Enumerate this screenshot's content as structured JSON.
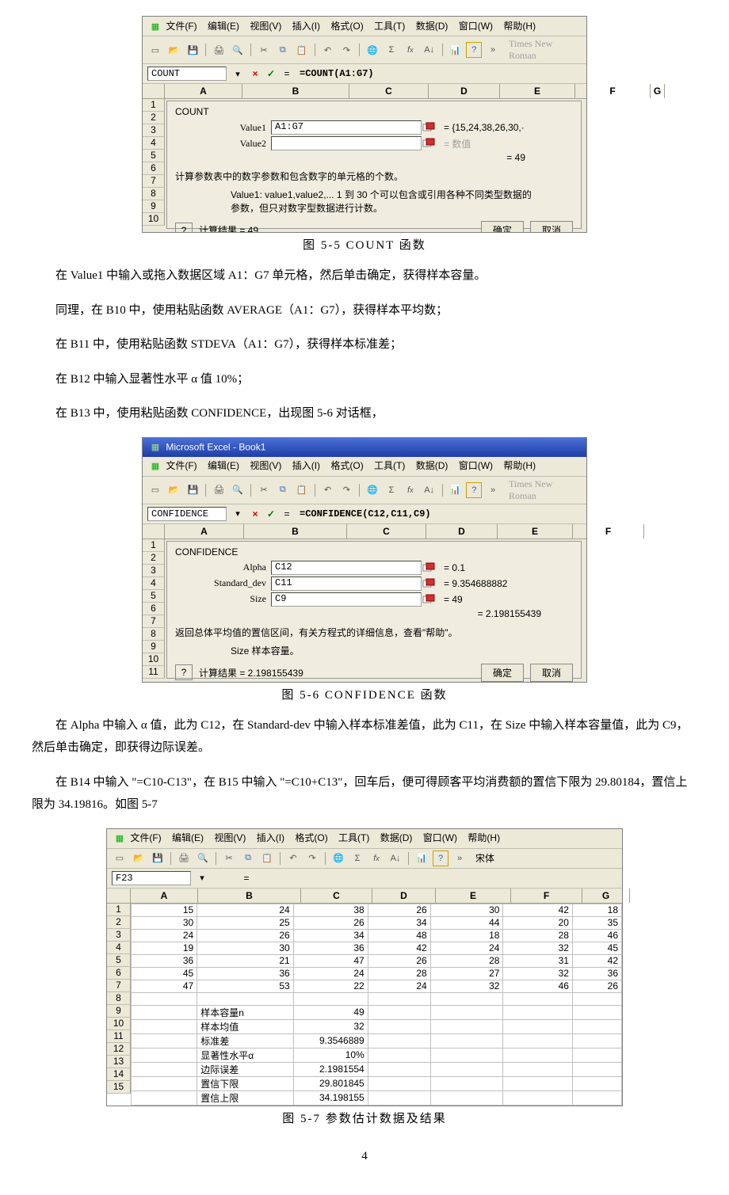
{
  "menus": {
    "file": "文件(F)",
    "edit": "编辑(E)",
    "view": "视图(V)",
    "insert": "插入(I)",
    "format": "格式(O)",
    "tools": "工具(T)",
    "data": "数据(D)",
    "window": "窗口(W)",
    "help": "帮助(H)"
  },
  "toolbar": {
    "fontname": "Times New Roman",
    "fontname3": "宋体"
  },
  "cols": {
    "a": "A",
    "b": "B",
    "c": "C",
    "d": "D",
    "e": "E",
    "f": "F",
    "g": "G"
  },
  "buttons": {
    "ok": "确定",
    "cancel": "取消"
  },
  "fig1": {
    "namebox": "COUNT",
    "formula": "=COUNT(A1:G7)",
    "title": "COUNT",
    "value1_label": "Value1",
    "value1_input": "A1:G7",
    "value1_eq": "= {15,24,38,26,30,·",
    "value2_label": "Value2",
    "value2_eq": "= 数值",
    "result_eq": "= 49",
    "desc": "计算参数表中的数字参数和包含数字的单元格的个数。",
    "sub1": "Value1: value1,value2,... 1 到 30 个可以包含或引用各种不同类型数据的",
    "sub2": "参数，但只对数字型数据进行计数。",
    "result_label": "计算结果 =   49",
    "caption": "图 5-5   COUNT 函数"
  },
  "para1": "在 Value1 中输入或拖入数据区域 A1：G7 单元格，然后单击确定，获得样本容量。",
  "para2": "同理，在 B10 中，使用粘贴函数 AVERAGE（A1：G7），获得样本平均数；",
  "para3": "在 B11 中，使用粘贴函数 STDEVA（A1：G7），获得样本标准差；",
  "para4": "在 B12 中输入显著性水平 α 值 10%；",
  "para5": "在 B13 中，使用粘贴函数 CONFIDENCE，出现图 5-6 对话框，",
  "fig2": {
    "titlebar": "Microsoft Excel - Book1",
    "namebox": "CONFIDENCE",
    "formula": "=CONFIDENCE(C12,C11,C9)",
    "title": "CONFIDENCE",
    "alpha_label": "Alpha",
    "alpha_input": "C12",
    "alpha_eq": "= 0.1",
    "std_label": "Standard_dev",
    "std_input": "C11",
    "std_eq": "= 9.354688882",
    "size_label": "Size",
    "size_input": "C9",
    "size_eq": "= 49",
    "result_eq": "= 2.198155439",
    "desc": "返回总体平均值的置信区间，有关方程式的详细信息，查看\"帮助\"。",
    "sub": "Size 样本容量。",
    "result_label": "计算结果 =   2.198155439",
    "caption": "图 5-6   CONFIDENCE 函数"
  },
  "para6": "在 Alpha 中输入 α 值，此为 C12，在 Standard-dev 中输入样本标准差值，此为 C11，在 Size 中输入样本容量值，此为 C9，然后单击确定，即获得边际误差。",
  "para7": "在 B14 中输入 \"=C10-C13\"，在 B15 中输入 \"=C10+C13\"，回车后，便可得顾客平均消费额的置信下限为 29.80184，置信上限为 34.19816。如图 5-7",
  "fig3": {
    "namebox": "F23",
    "rows": [
      [
        "15",
        "24",
        "38",
        "26",
        "30",
        "42",
        "18"
      ],
      [
        "30",
        "25",
        "26",
        "34",
        "44",
        "20",
        "35"
      ],
      [
        "24",
        "26",
        "34",
        "48",
        "18",
        "28",
        "46"
      ],
      [
        "19",
        "30",
        "36",
        "42",
        "24",
        "32",
        "45"
      ],
      [
        "36",
        "21",
        "47",
        "26",
        "28",
        "31",
        "42"
      ],
      [
        "45",
        "36",
        "24",
        "28",
        "27",
        "32",
        "36"
      ],
      [
        "47",
        "53",
        "22",
        "24",
        "32",
        "46",
        "26"
      ]
    ],
    "labels": {
      "r9": {
        "b": "样本容量n",
        "c": "49"
      },
      "r10": {
        "b": "样本均值",
        "c": "32"
      },
      "r11": {
        "b": "标准差",
        "c": "9.3546889"
      },
      "r12": {
        "b": "显著性水平α",
        "c": "10%"
      },
      "r13": {
        "b": "边际误差",
        "c": "2.1981554"
      },
      "r14": {
        "b": "置信下限",
        "c": "29.801845"
      },
      "r15": {
        "b": "置信上限",
        "c": "34.198155"
      }
    },
    "caption": "图 5-7   参数估计数据及结果"
  },
  "pagenum": "4"
}
